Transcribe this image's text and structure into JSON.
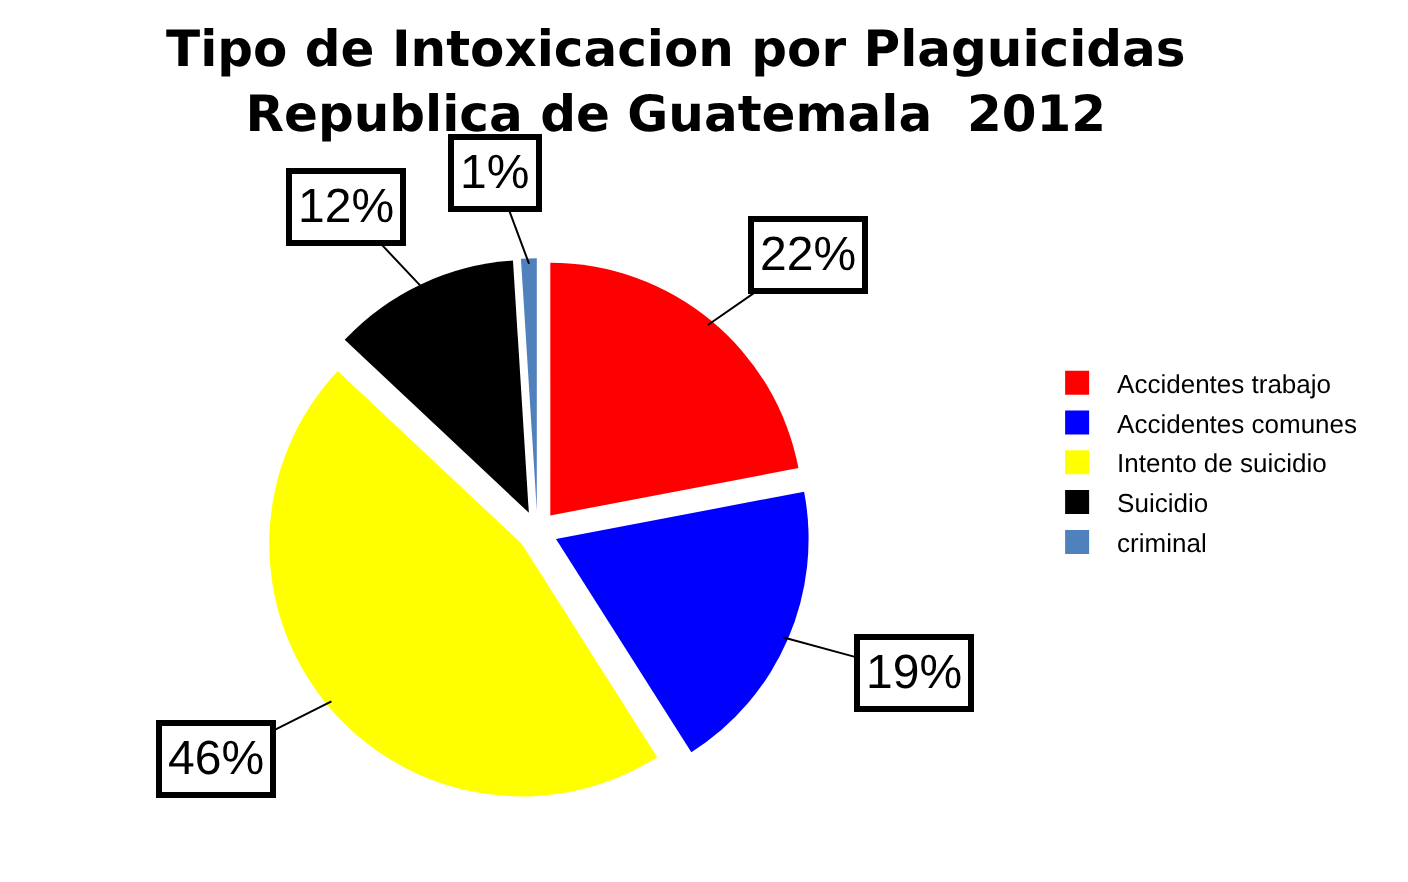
{
  "chart_data": {
    "type": "pie",
    "title": "Tipo de Intoxicacion por Plaguicidas\nRepublica de Guatemala  2012",
    "categories": [
      "Accidentes trabajo",
      "Accidentes comunes",
      "Intento de suicidio",
      "Suicidio",
      "criminal"
    ],
    "values": [
      22,
      19,
      46,
      12,
      1
    ],
    "colors": [
      "#ff0000",
      "#0000ff",
      "#ffff00",
      "#000000",
      "#4f81bd"
    ],
    "value_labels": [
      "22%",
      "19%",
      "46%",
      "12%",
      "1%"
    ],
    "legend": "right"
  }
}
